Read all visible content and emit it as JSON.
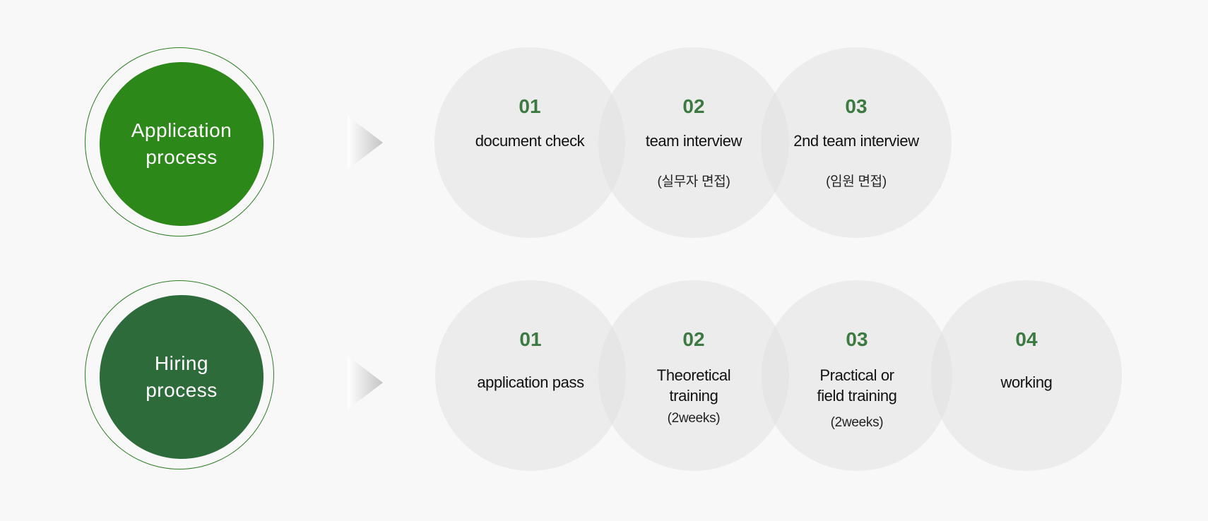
{
  "application": {
    "label_lines": [
      "Application",
      "process"
    ],
    "steps": [
      {
        "num": "01",
        "title_lines": [
          "document check"
        ],
        "sub": ""
      },
      {
        "num": "02",
        "title_lines": [
          "team interview"
        ],
        "sub": "(실무자 면접)"
      },
      {
        "num": "03",
        "title_lines": [
          "2nd  team interview"
        ],
        "sub": "(임원 면접)"
      }
    ]
  },
  "hiring": {
    "label_lines": [
      "Hiring",
      "process"
    ],
    "steps": [
      {
        "num": "01",
        "title_lines": [
          "application pass"
        ],
        "sub": ""
      },
      {
        "num": "02",
        "title_lines": [
          "Theoretical",
          "training"
        ],
        "sub": "(2weeks)"
      },
      {
        "num": "03",
        "title_lines": [
          "Practical or",
          "field  training"
        ],
        "sub": "(2weeks)"
      },
      {
        "num": "04",
        "title_lines": [
          "working"
        ],
        "sub": ""
      }
    ]
  },
  "colors": {
    "application_green": "#2c8819",
    "hiring_green": "#2e6b3b",
    "step_number": "#3d7a42",
    "step_circle": "#e2e2e2"
  },
  "icons": [
    "arrow-right-icon"
  ]
}
